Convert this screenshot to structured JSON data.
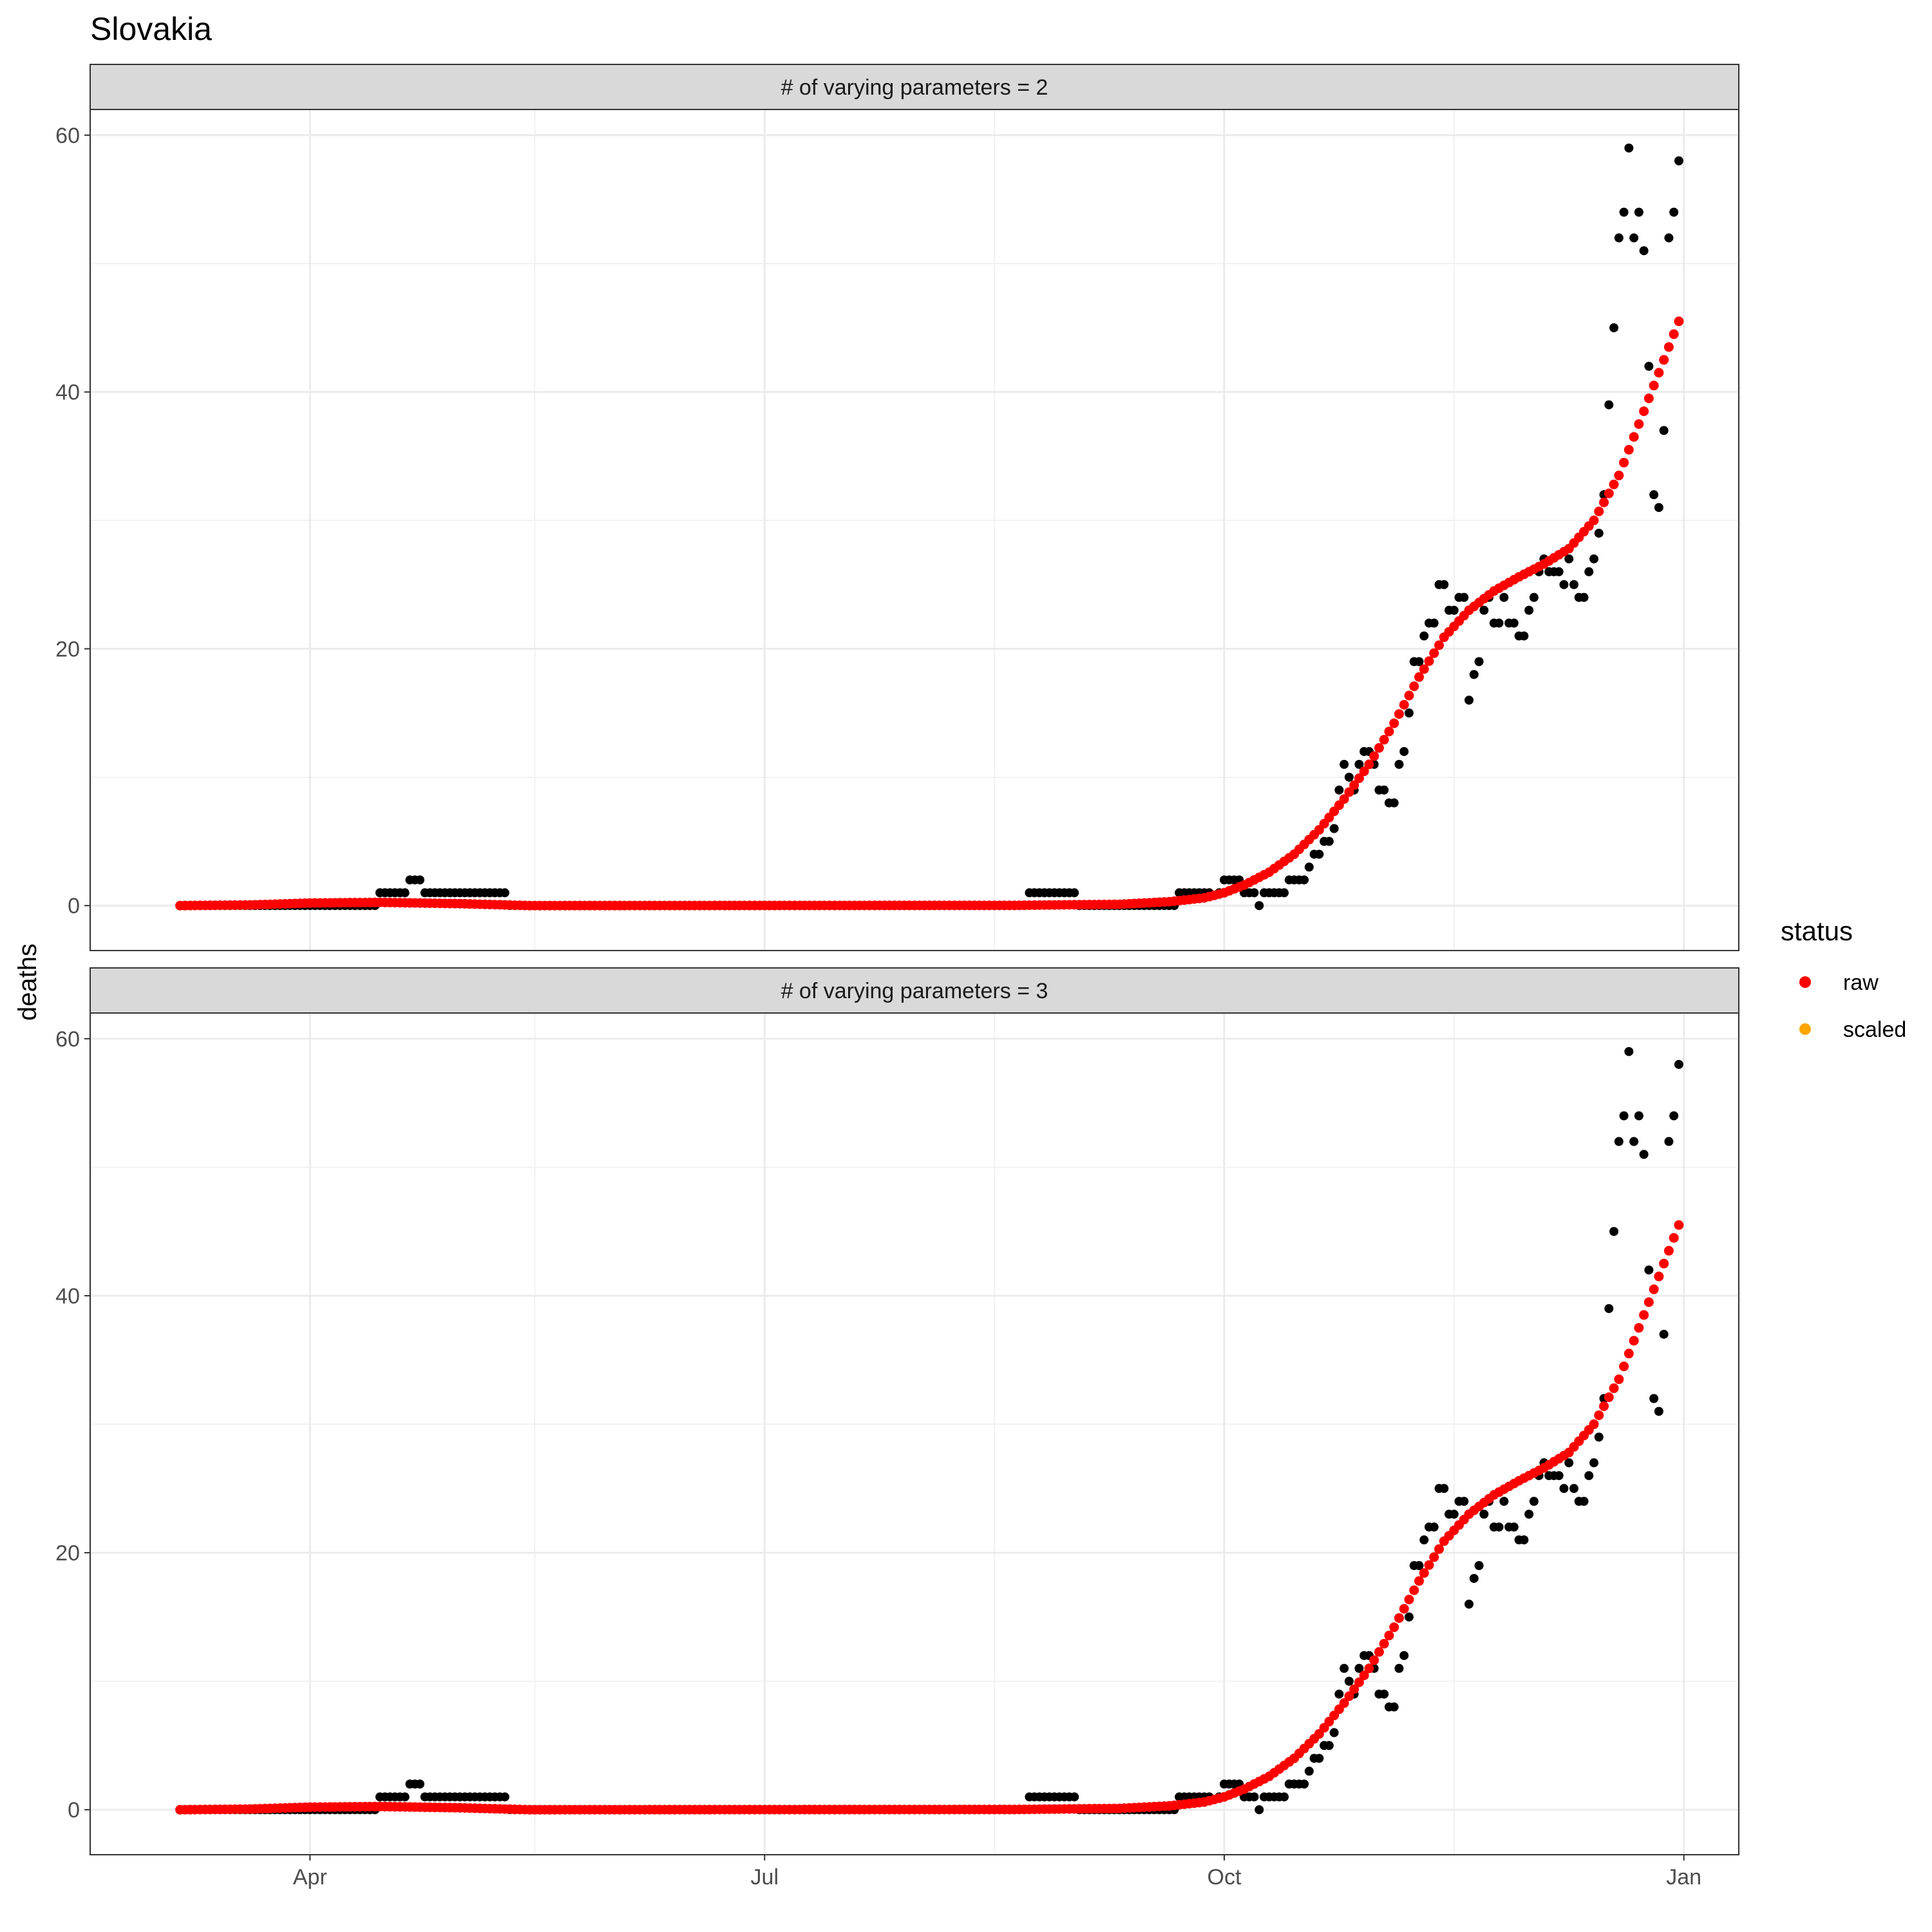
{
  "chart_data": {
    "type": "scatter",
    "title": "Slovakia",
    "ylabel": "deaths",
    "xlabel": "",
    "x_ticks": [
      "Apr",
      "Jul",
      "Oct",
      "Jan"
    ],
    "y_ticks": [
      "0",
      "20",
      "40",
      "60"
    ],
    "ylim": [
      -3.5,
      62
    ],
    "xlim": [
      "2020-02-17",
      "2021-01-12"
    ],
    "grid": true,
    "legend": {
      "title": "status",
      "placement": "right",
      "entries": [
        {
          "label": "raw",
          "color": "#ff0000"
        },
        {
          "label": "scaled",
          "color": "#ffa500"
        }
      ]
    },
    "observed_color": "#000000",
    "fit_color": "#ff0000",
    "facets": [
      {
        "label": "# of varying parameters = 2"
      },
      {
        "label": "# of varying parameters = 3"
      }
    ],
    "observed_segments": [
      {
        "from": "2020-03-06",
        "to": "2020-04-15",
        "value": 0
      },
      {
        "from": "2020-04-15",
        "to": "2020-04-21",
        "value": 1
      },
      {
        "from": "2020-04-21",
        "to": "2020-04-24",
        "value": 2
      },
      {
        "from": "2020-04-24",
        "to": "2020-05-11",
        "value": 1
      },
      {
        "from": "2020-05-11",
        "to": "2020-08-23",
        "value": 0
      },
      {
        "from": "2020-08-23",
        "to": "2020-09-02",
        "value": 1
      },
      {
        "from": "2020-09-02",
        "to": "2020-09-22",
        "value": 0
      },
      {
        "from": "2020-09-22",
        "to": "2020-09-29",
        "value": 1
      }
    ],
    "observed_points": [
      [
        "2020-09-30",
        1
      ],
      [
        "2020-10-01",
        2
      ],
      [
        "2020-10-02",
        2
      ],
      [
        "2020-10-03",
        2
      ],
      [
        "2020-10-04",
        2
      ],
      [
        "2020-10-05",
        1
      ],
      [
        "2020-10-06",
        1
      ],
      [
        "2020-10-07",
        1
      ],
      [
        "2020-10-08",
        0
      ],
      [
        "2020-10-09",
        1
      ],
      [
        "2020-10-10",
        1
      ],
      [
        "2020-10-11",
        1
      ],
      [
        "2020-10-12",
        1
      ],
      [
        "2020-10-13",
        1
      ],
      [
        "2020-10-14",
        2
      ],
      [
        "2020-10-15",
        2
      ],
      [
        "2020-10-16",
        2
      ],
      [
        "2020-10-17",
        2
      ],
      [
        "2020-10-18",
        3
      ],
      [
        "2020-10-19",
        4
      ],
      [
        "2020-10-20",
        4
      ],
      [
        "2020-10-21",
        5
      ],
      [
        "2020-10-22",
        5
      ],
      [
        "2020-10-23",
        6
      ],
      [
        "2020-10-24",
        9
      ],
      [
        "2020-10-25",
        11
      ],
      [
        "2020-10-26",
        10
      ],
      [
        "2020-10-27",
        9
      ],
      [
        "2020-10-28",
        11
      ],
      [
        "2020-10-29",
        12
      ],
      [
        "2020-10-30",
        12
      ],
      [
        "2020-10-31",
        11
      ],
      [
        "2020-11-01",
        9
      ],
      [
        "2020-11-02",
        9
      ],
      [
        "2020-11-03",
        8
      ],
      [
        "2020-11-04",
        8
      ],
      [
        "2020-11-05",
        11
      ],
      [
        "2020-11-06",
        12
      ],
      [
        "2020-11-07",
        15
      ],
      [
        "2020-11-08",
        19
      ],
      [
        "2020-11-09",
        19
      ],
      [
        "2020-11-10",
        21
      ],
      [
        "2020-11-11",
        22
      ],
      [
        "2020-11-12",
        22
      ],
      [
        "2020-11-13",
        25
      ],
      [
        "2020-11-14",
        25
      ],
      [
        "2020-11-15",
        23
      ],
      [
        "2020-11-16",
        23
      ],
      [
        "2020-11-17",
        24
      ],
      [
        "2020-11-18",
        24
      ],
      [
        "2020-11-19",
        16
      ],
      [
        "2020-11-20",
        18
      ],
      [
        "2020-11-21",
        19
      ],
      [
        "2020-11-22",
        23
      ],
      [
        "2020-11-23",
        24
      ],
      [
        "2020-11-24",
        22
      ],
      [
        "2020-11-25",
        22
      ],
      [
        "2020-11-26",
        24
      ],
      [
        "2020-11-27",
        22
      ],
      [
        "2020-11-28",
        22
      ],
      [
        "2020-11-29",
        21
      ],
      [
        "2020-11-30",
        21
      ],
      [
        "2020-12-01",
        23
      ],
      [
        "2020-12-02",
        24
      ],
      [
        "2020-12-03",
        26
      ],
      [
        "2020-12-04",
        27
      ],
      [
        "2020-12-05",
        26
      ],
      [
        "2020-12-06",
        26
      ],
      [
        "2020-12-07",
        26
      ],
      [
        "2020-12-08",
        25
      ],
      [
        "2020-12-09",
        27
      ],
      [
        "2020-12-10",
        25
      ],
      [
        "2020-12-11",
        24
      ],
      [
        "2020-12-12",
        24
      ],
      [
        "2020-12-13",
        26
      ],
      [
        "2020-12-14",
        27
      ],
      [
        "2020-12-15",
        29
      ],
      [
        "2020-12-16",
        32
      ],
      [
        "2020-12-17",
        39
      ],
      [
        "2020-12-18",
        45
      ],
      [
        "2020-12-19",
        52
      ],
      [
        "2020-12-20",
        54
      ],
      [
        "2020-12-21",
        59
      ],
      [
        "2020-12-22",
        52
      ],
      [
        "2020-12-23",
        54
      ],
      [
        "2020-12-24",
        51
      ],
      [
        "2020-12-25",
        42
      ],
      [
        "2020-12-26",
        32
      ],
      [
        "2020-12-27",
        31
      ],
      [
        "2020-12-28",
        37
      ],
      [
        "2020-12-29",
        52
      ],
      [
        "2020-12-30",
        54
      ],
      [
        "2020-12-31",
        58
      ]
    ],
    "fit_curve": {
      "from": "2020-03-06",
      "to": "2020-12-31",
      "knots": [
        [
          "2020-03-06",
          0
        ],
        [
          "2020-03-20",
          0.05
        ],
        [
          "2020-04-01",
          0.2
        ],
        [
          "2020-04-15",
          0.25
        ],
        [
          "2020-05-01",
          0.15
        ],
        [
          "2020-05-15",
          0.0
        ],
        [
          "2020-08-20",
          0.02
        ],
        [
          "2020-09-10",
          0.1
        ],
        [
          "2020-09-20",
          0.3
        ],
        [
          "2020-09-27",
          0.6
        ],
        [
          "2020-10-01",
          1.0
        ],
        [
          "2020-10-05",
          1.6
        ],
        [
          "2020-10-10",
          2.6
        ],
        [
          "2020-10-15",
          4.0
        ],
        [
          "2020-10-20",
          5.9
        ],
        [
          "2020-10-25",
          8.3
        ],
        [
          "2020-10-30",
          11.0
        ],
        [
          "2020-11-04",
          14.2
        ],
        [
          "2020-11-09",
          17.8
        ],
        [
          "2020-11-14",
          20.9
        ],
        [
          "2020-11-19",
          23.0
        ],
        [
          "2020-11-24",
          24.5
        ],
        [
          "2020-11-29",
          25.6
        ],
        [
          "2020-12-04",
          26.6
        ],
        [
          "2020-12-09",
          27.8
        ],
        [
          "2020-12-14",
          30.0
        ],
        [
          "2020-12-19",
          33.5
        ],
        [
          "2020-12-24",
          38.5
        ],
        [
          "2020-12-28",
          42.5
        ],
        [
          "2020-12-31",
          45.5
        ]
      ]
    }
  }
}
